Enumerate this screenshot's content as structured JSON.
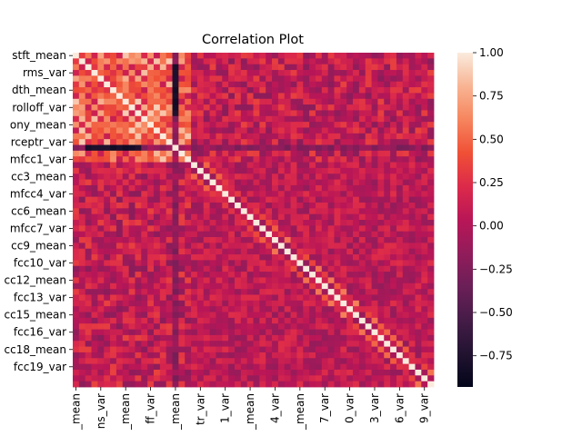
{
  "chart_data": {
    "type": "heatmap",
    "title": "Correlation Plot",
    "xlabel": "",
    "ylabel": "",
    "n_variables": 58,
    "y_tick_labels": [
      "stft_mean",
      "rms_var",
      "dth_mean",
      "rolloff_var",
      "ony_mean",
      "rceptr_var",
      "mfcc1_var",
      "cc3_mean",
      "mfcc4_var",
      "cc6_mean",
      "mfcc7_var",
      "cc9_mean",
      "fcc10_var",
      "cc12_mean",
      "fcc13_var",
      "cc15_mean",
      "fcc16_var",
      "cc18_mean",
      "fcc19_var"
    ],
    "x_tick_labels": [
      "_mean",
      "ns_var",
      "_mean",
      "ff_var",
      "_mean",
      "tr_var",
      "1_var",
      "_mean",
      "4_var",
      "_mean",
      "7_var",
      "0_var",
      "3_var",
      "6_var",
      "9_var"
    ],
    "colorbar": {
      "vmin": -0.93,
      "vmax": 1.0,
      "ticks": [
        1.0,
        0.75,
        0.5,
        0.25,
        0.0,
        -0.25,
        -0.5,
        -0.75
      ],
      "tick_labels": [
        "1.00",
        "0.75",
        "0.50",
        "0.25",
        "0.00",
        "−0.25",
        "−0.50",
        "−0.75"
      ],
      "colormap": "rocket"
    }
  }
}
